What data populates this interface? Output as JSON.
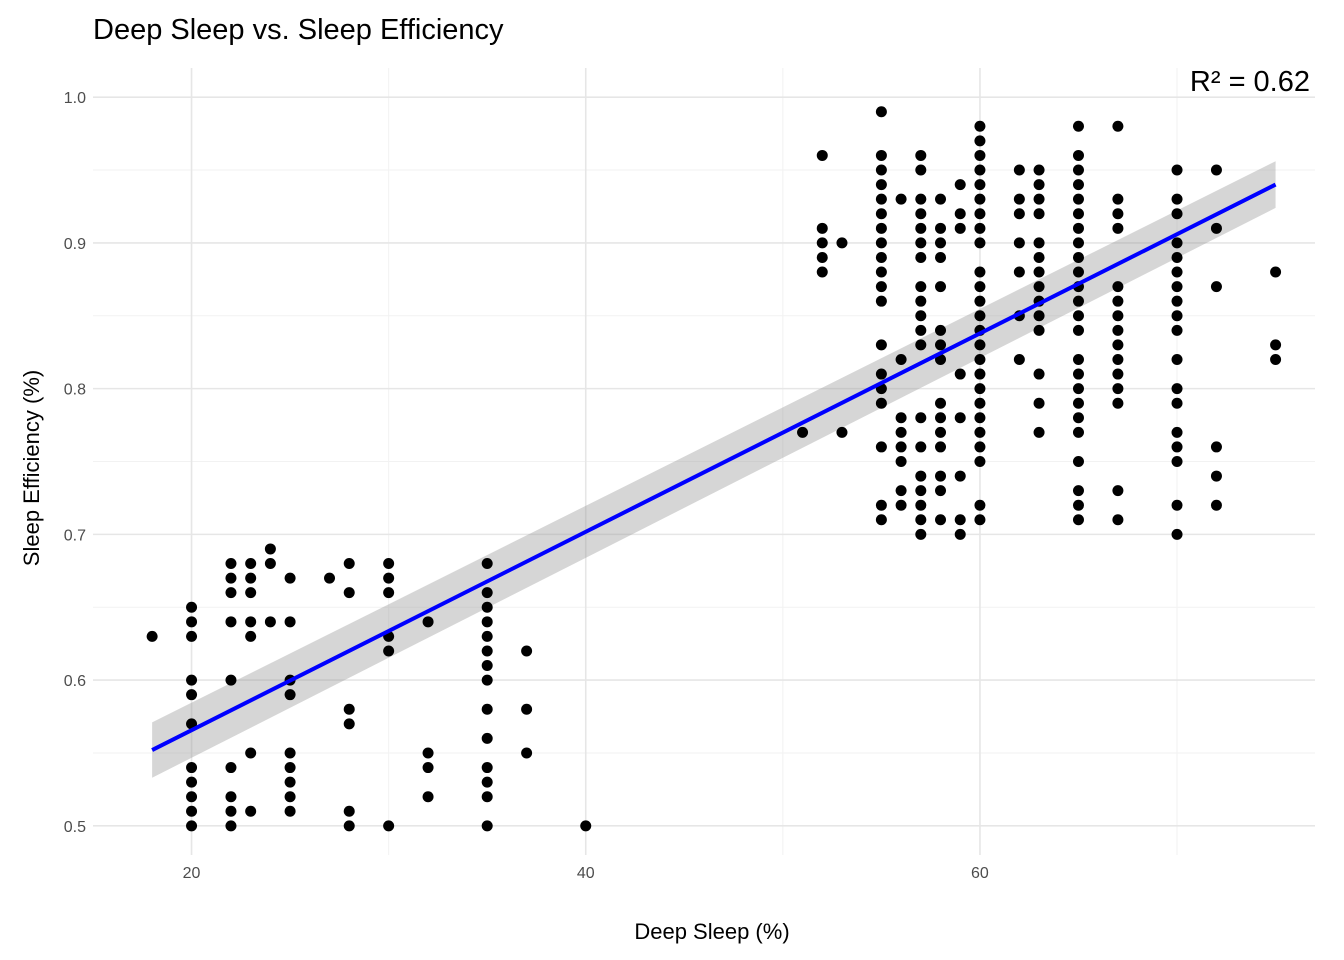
{
  "chart_data": {
    "type": "scatter",
    "title": "Deep Sleep vs. Sleep Efficiency",
    "xlabel": "Deep Sleep (%)",
    "ylabel": "Sleep Efficiency (%)",
    "xlim": [
      15,
      77
    ],
    "ylim": [
      0.48,
      1.02
    ],
    "x_ticks": [
      20,
      40,
      60
    ],
    "y_ticks": [
      0.5,
      0.6,
      0.7,
      0.8,
      0.9,
      1.0
    ],
    "x_tick_labels": [
      "20",
      "40",
      "60"
    ],
    "y_tick_labels": [
      "0.5",
      "0.6",
      "0.7",
      "0.8",
      "0.9",
      "1.0"
    ],
    "grid": true,
    "annotation": "R² =  0.62",
    "colors": {
      "points": "#000000",
      "line": "#0000ff",
      "band": "#999999"
    },
    "trend": {
      "x": [
        18,
        75
      ],
      "y": [
        0.552,
        0.94
      ],
      "ci_halfwidth": [
        0.019,
        0.016
      ]
    },
    "points": [
      [
        18,
        0.63
      ],
      [
        20,
        0.65
      ],
      [
        20,
        0.64
      ],
      [
        20,
        0.63
      ],
      [
        20,
        0.6
      ],
      [
        20,
        0.59
      ],
      [
        20,
        0.57
      ],
      [
        20,
        0.54
      ],
      [
        20,
        0.53
      ],
      [
        20,
        0.52
      ],
      [
        20,
        0.51
      ],
      [
        20,
        0.5
      ],
      [
        22,
        0.68
      ],
      [
        22,
        0.67
      ],
      [
        22,
        0.66
      ],
      [
        22,
        0.64
      ],
      [
        22,
        0.6
      ],
      [
        22,
        0.54
      ],
      [
        22,
        0.52
      ],
      [
        22,
        0.51
      ],
      [
        22,
        0.5
      ],
      [
        23,
        0.68
      ],
      [
        23,
        0.67
      ],
      [
        23,
        0.66
      ],
      [
        23,
        0.64
      ],
      [
        23,
        0.63
      ],
      [
        23,
        0.55
      ],
      [
        23,
        0.51
      ],
      [
        24,
        0.69
      ],
      [
        24,
        0.68
      ],
      [
        24,
        0.64
      ],
      [
        25,
        0.67
      ],
      [
        25,
        0.64
      ],
      [
        25,
        0.6
      ],
      [
        25,
        0.59
      ],
      [
        25,
        0.55
      ],
      [
        25,
        0.54
      ],
      [
        25,
        0.53
      ],
      [
        25,
        0.52
      ],
      [
        25,
        0.51
      ],
      [
        27,
        0.67
      ],
      [
        28,
        0.68
      ],
      [
        28,
        0.66
      ],
      [
        28,
        0.58
      ],
      [
        28,
        0.57
      ],
      [
        28,
        0.51
      ],
      [
        28,
        0.5
      ],
      [
        30,
        0.68
      ],
      [
        30,
        0.67
      ],
      [
        30,
        0.66
      ],
      [
        30,
        0.63
      ],
      [
        30,
        0.62
      ],
      [
        30,
        0.5
      ],
      [
        32,
        0.64
      ],
      [
        32,
        0.55
      ],
      [
        32,
        0.54
      ],
      [
        32,
        0.52
      ],
      [
        35,
        0.68
      ],
      [
        35,
        0.66
      ],
      [
        35,
        0.65
      ],
      [
        35,
        0.64
      ],
      [
        35,
        0.63
      ],
      [
        35,
        0.62
      ],
      [
        35,
        0.61
      ],
      [
        35,
        0.6
      ],
      [
        35,
        0.58
      ],
      [
        35,
        0.56
      ],
      [
        35,
        0.54
      ],
      [
        35,
        0.53
      ],
      [
        35,
        0.52
      ],
      [
        35,
        0.5
      ],
      [
        37,
        0.62
      ],
      [
        37,
        0.58
      ],
      [
        37,
        0.55
      ],
      [
        40,
        0.5
      ],
      [
        51,
        0.77
      ],
      [
        52,
        0.96
      ],
      [
        52,
        0.91
      ],
      [
        52,
        0.9
      ],
      [
        52,
        0.89
      ],
      [
        52,
        0.88
      ],
      [
        53,
        0.9
      ],
      [
        53,
        0.77
      ],
      [
        55,
        0.99
      ],
      [
        55,
        0.96
      ],
      [
        55,
        0.95
      ],
      [
        55,
        0.94
      ],
      [
        55,
        0.93
      ],
      [
        55,
        0.92
      ],
      [
        55,
        0.91
      ],
      [
        55,
        0.9
      ],
      [
        55,
        0.89
      ],
      [
        55,
        0.88
      ],
      [
        55,
        0.87
      ],
      [
        55,
        0.86
      ],
      [
        55,
        0.83
      ],
      [
        55,
        0.81
      ],
      [
        55,
        0.8
      ],
      [
        55,
        0.79
      ],
      [
        55,
        0.76
      ],
      [
        55,
        0.72
      ],
      [
        55,
        0.71
      ],
      [
        56,
        0.93
      ],
      [
        56,
        0.82
      ],
      [
        56,
        0.78
      ],
      [
        56,
        0.77
      ],
      [
        56,
        0.76
      ],
      [
        56,
        0.75
      ],
      [
        56,
        0.73
      ],
      [
        56,
        0.72
      ],
      [
        57,
        0.96
      ],
      [
        57,
        0.95
      ],
      [
        57,
        0.93
      ],
      [
        57,
        0.92
      ],
      [
        57,
        0.91
      ],
      [
        57,
        0.9
      ],
      [
        57,
        0.89
      ],
      [
        57,
        0.87
      ],
      [
        57,
        0.86
      ],
      [
        57,
        0.85
      ],
      [
        57,
        0.84
      ],
      [
        57,
        0.83
      ],
      [
        57,
        0.78
      ],
      [
        57,
        0.76
      ],
      [
        57,
        0.74
      ],
      [
        57,
        0.73
      ],
      [
        57,
        0.72
      ],
      [
        57,
        0.71
      ],
      [
        57,
        0.7
      ],
      [
        58,
        0.93
      ],
      [
        58,
        0.91
      ],
      [
        58,
        0.9
      ],
      [
        58,
        0.89
      ],
      [
        58,
        0.87
      ],
      [
        58,
        0.84
      ],
      [
        58,
        0.83
      ],
      [
        58,
        0.82
      ],
      [
        58,
        0.79
      ],
      [
        58,
        0.78
      ],
      [
        58,
        0.77
      ],
      [
        58,
        0.76
      ],
      [
        58,
        0.74
      ],
      [
        58,
        0.73
      ],
      [
        58,
        0.71
      ],
      [
        59,
        0.94
      ],
      [
        59,
        0.92
      ],
      [
        59,
        0.91
      ],
      [
        59,
        0.81
      ],
      [
        59,
        0.78
      ],
      [
        59,
        0.74
      ],
      [
        59,
        0.71
      ],
      [
        59,
        0.7
      ],
      [
        60,
        0.98
      ],
      [
        60,
        0.97
      ],
      [
        60,
        0.96
      ],
      [
        60,
        0.95
      ],
      [
        60,
        0.94
      ],
      [
        60,
        0.93
      ],
      [
        60,
        0.92
      ],
      [
        60,
        0.91
      ],
      [
        60,
        0.9
      ],
      [
        60,
        0.88
      ],
      [
        60,
        0.87
      ],
      [
        60,
        0.86
      ],
      [
        60,
        0.85
      ],
      [
        60,
        0.84
      ],
      [
        60,
        0.83
      ],
      [
        60,
        0.82
      ],
      [
        60,
        0.81
      ],
      [
        60,
        0.8
      ],
      [
        60,
        0.79
      ],
      [
        60,
        0.78
      ],
      [
        60,
        0.77
      ],
      [
        60,
        0.76
      ],
      [
        60,
        0.75
      ],
      [
        60,
        0.72
      ],
      [
        60,
        0.71
      ],
      [
        62,
        0.95
      ],
      [
        62,
        0.93
      ],
      [
        62,
        0.92
      ],
      [
        62,
        0.9
      ],
      [
        62,
        0.88
      ],
      [
        62,
        0.85
      ],
      [
        62,
        0.82
      ],
      [
        63,
        0.95
      ],
      [
        63,
        0.94
      ],
      [
        63,
        0.93
      ],
      [
        63,
        0.92
      ],
      [
        63,
        0.9
      ],
      [
        63,
        0.89
      ],
      [
        63,
        0.88
      ],
      [
        63,
        0.87
      ],
      [
        63,
        0.86
      ],
      [
        63,
        0.85
      ],
      [
        63,
        0.84
      ],
      [
        63,
        0.81
      ],
      [
        63,
        0.79
      ],
      [
        63,
        0.77
      ],
      [
        65,
        0.98
      ],
      [
        65,
        0.96
      ],
      [
        65,
        0.95
      ],
      [
        65,
        0.94
      ],
      [
        65,
        0.93
      ],
      [
        65,
        0.92
      ],
      [
        65,
        0.91
      ],
      [
        65,
        0.9
      ],
      [
        65,
        0.89
      ],
      [
        65,
        0.88
      ],
      [
        65,
        0.87
      ],
      [
        65,
        0.86
      ],
      [
        65,
        0.85
      ],
      [
        65,
        0.84
      ],
      [
        65,
        0.82
      ],
      [
        65,
        0.81
      ],
      [
        65,
        0.8
      ],
      [
        65,
        0.79
      ],
      [
        65,
        0.78
      ],
      [
        65,
        0.77
      ],
      [
        65,
        0.75
      ],
      [
        65,
        0.73
      ],
      [
        65,
        0.72
      ],
      [
        65,
        0.71
      ],
      [
        67,
        0.98
      ],
      [
        67,
        0.93
      ],
      [
        67,
        0.92
      ],
      [
        67,
        0.91
      ],
      [
        67,
        0.87
      ],
      [
        67,
        0.86
      ],
      [
        67,
        0.85
      ],
      [
        67,
        0.84
      ],
      [
        67,
        0.83
      ],
      [
        67,
        0.82
      ],
      [
        67,
        0.81
      ],
      [
        67,
        0.8
      ],
      [
        67,
        0.79
      ],
      [
        67,
        0.73
      ],
      [
        67,
        0.71
      ],
      [
        70,
        0.95
      ],
      [
        70,
        0.93
      ],
      [
        70,
        0.92
      ],
      [
        70,
        0.9
      ],
      [
        70,
        0.89
      ],
      [
        70,
        0.88
      ],
      [
        70,
        0.87
      ],
      [
        70,
        0.86
      ],
      [
        70,
        0.85
      ],
      [
        70,
        0.84
      ],
      [
        70,
        0.82
      ],
      [
        70,
        0.8
      ],
      [
        70,
        0.79
      ],
      [
        70,
        0.77
      ],
      [
        70,
        0.76
      ],
      [
        70,
        0.75
      ],
      [
        70,
        0.72
      ],
      [
        70,
        0.7
      ],
      [
        72,
        0.95
      ],
      [
        72,
        0.91
      ],
      [
        72,
        0.87
      ],
      [
        72,
        0.76
      ],
      [
        72,
        0.74
      ],
      [
        72,
        0.72
      ],
      [
        75,
        0.88
      ],
      [
        75,
        0.83
      ],
      [
        75,
        0.82
      ]
    ]
  }
}
